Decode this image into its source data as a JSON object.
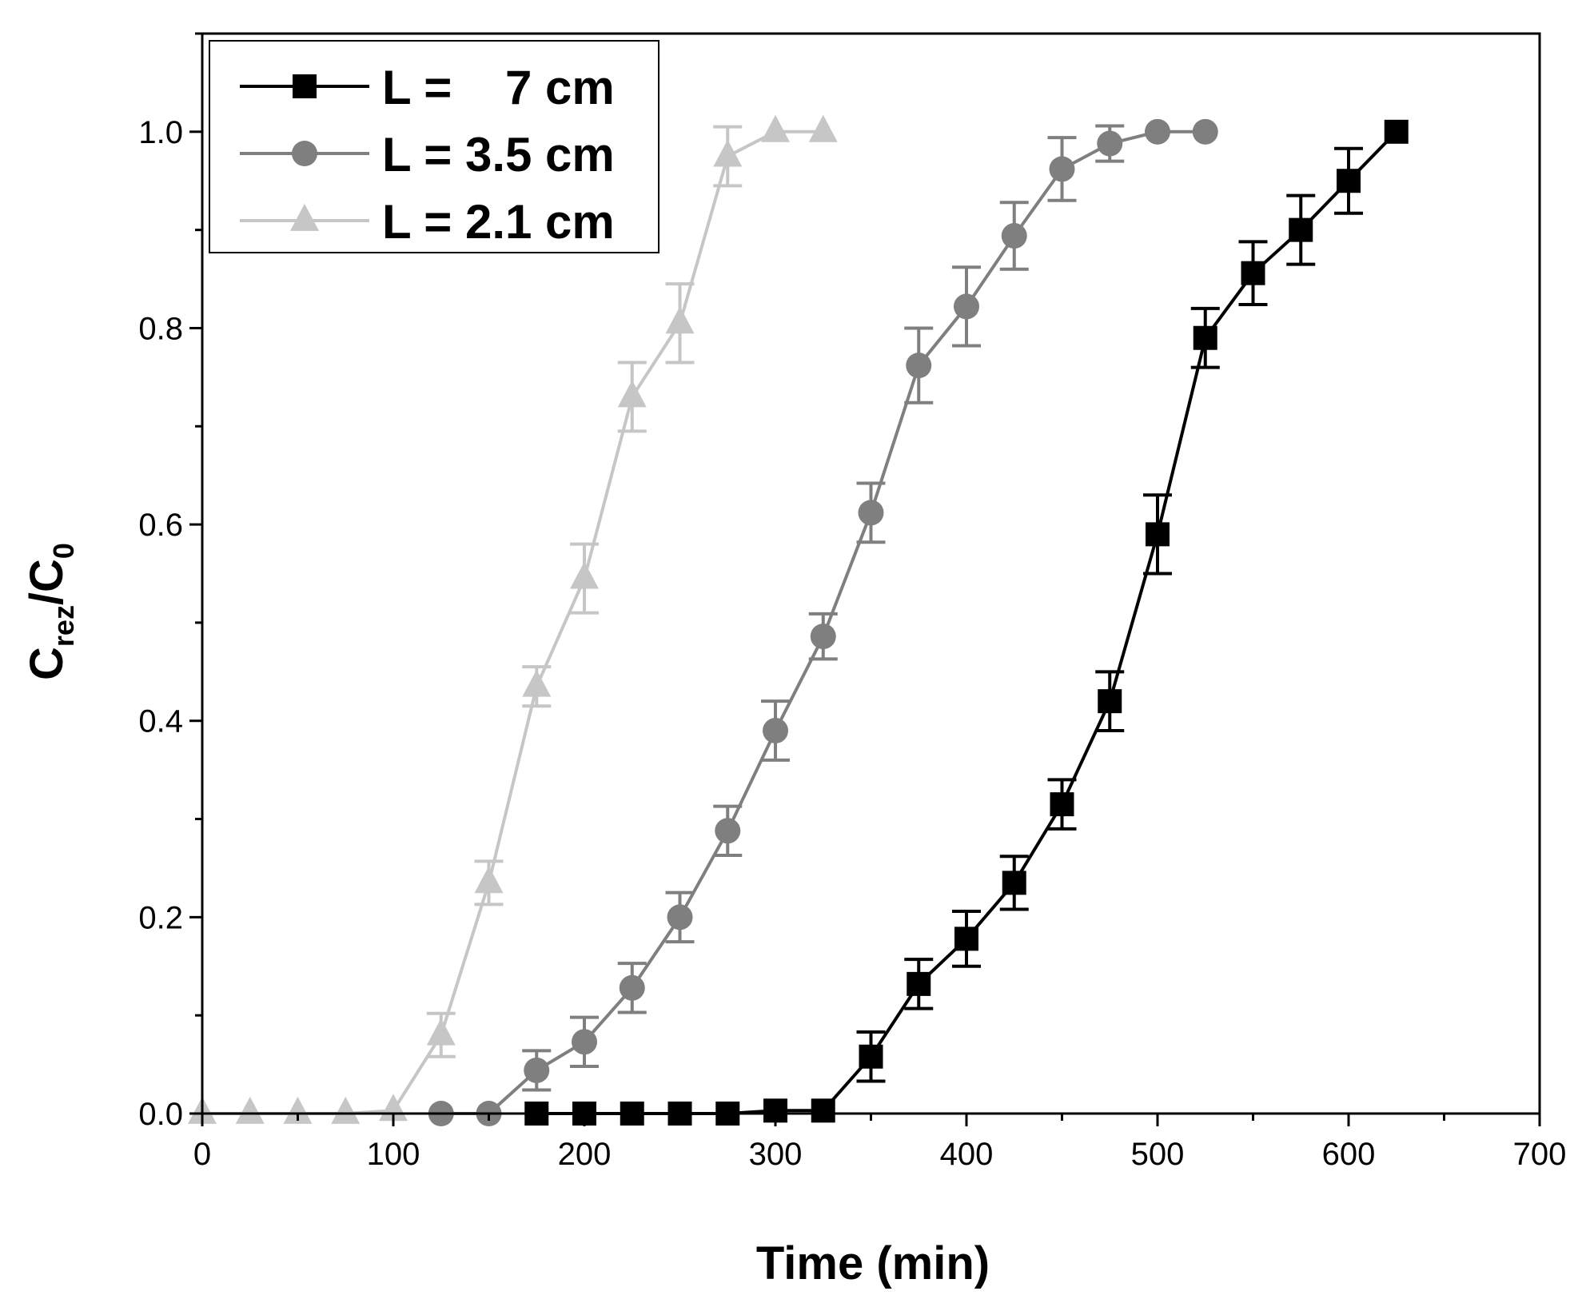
{
  "chart_data": {
    "type": "line",
    "xlabel": "Time (min)",
    "ylabel": {
      "main": "C",
      "sub1": "rez",
      "slash": "/C",
      "sub2": "0"
    },
    "xlim": [
      0,
      700
    ],
    "ylim": [
      0,
      1.1
    ],
    "xticks": [
      0,
      100,
      200,
      300,
      400,
      500,
      600,
      700
    ],
    "yticks": [
      0.0,
      0.2,
      0.4,
      0.6,
      0.8,
      1.0
    ],
    "xtick_labels": [
      "0",
      "100",
      "200",
      "300",
      "400",
      "500",
      "600",
      "700"
    ],
    "ytick_labels": [
      "0.0",
      "0.2",
      "0.4",
      "0.6",
      "0.8",
      "1.0"
    ],
    "grid": false,
    "legend_position": "top-left",
    "series": [
      {
        "name": "L =    7 cm",
        "marker": "square",
        "color": "#000000",
        "x": [
          175,
          200,
          225,
          250,
          275,
          300,
          325,
          350,
          375,
          400,
          425,
          450,
          475,
          500,
          525,
          550,
          575,
          600,
          625
        ],
        "y": [
          0.0,
          0.0,
          0.0,
          0.0,
          0.0,
          0.003,
          0.003,
          0.058,
          0.132,
          0.178,
          0.235,
          0.315,
          0.42,
          0.59,
          0.79,
          0.856,
          0.9,
          0.95,
          1.0
        ],
        "err": [
          0,
          0,
          0,
          0,
          0,
          0,
          0,
          0.025,
          0.025,
          0.028,
          0.027,
          0.025,
          0.03,
          0.04,
          0.03,
          0.032,
          0.035,
          0.033,
          0
        ]
      },
      {
        "name": "L = 3.5 cm",
        "marker": "circle",
        "color": "#7f7f7f",
        "x": [
          125,
          150,
          175,
          200,
          225,
          250,
          275,
          300,
          325,
          350,
          375,
          400,
          425,
          450,
          475,
          500,
          525
        ],
        "y": [
          0.0,
          0.0,
          0.044,
          0.073,
          0.128,
          0.2,
          0.288,
          0.39,
          0.486,
          0.612,
          0.762,
          0.822,
          0.894,
          0.962,
          0.988,
          1.0,
          1.0
        ],
        "err": [
          0,
          0,
          0.02,
          0.025,
          0.025,
          0.025,
          0.025,
          0.03,
          0.023,
          0.03,
          0.038,
          0.04,
          0.034,
          0.032,
          0.018,
          0,
          0
        ]
      },
      {
        "name": "L = 2.1 cm",
        "marker": "triangle",
        "color": "#c6c6c6",
        "x": [
          0,
          25,
          50,
          75,
          100,
          125,
          150,
          175,
          200,
          225,
          250,
          275,
          300,
          325
        ],
        "y": [
          0.0,
          0.0,
          0.0,
          0.0,
          0.003,
          0.08,
          0.235,
          0.435,
          0.545,
          0.73,
          0.805,
          0.975,
          1.0,
          1.0
        ],
        "err": [
          0,
          0,
          0,
          0,
          0,
          0.022,
          0.022,
          0.02,
          0.035,
          0.035,
          0.04,
          0.03,
          0,
          0
        ]
      }
    ]
  }
}
